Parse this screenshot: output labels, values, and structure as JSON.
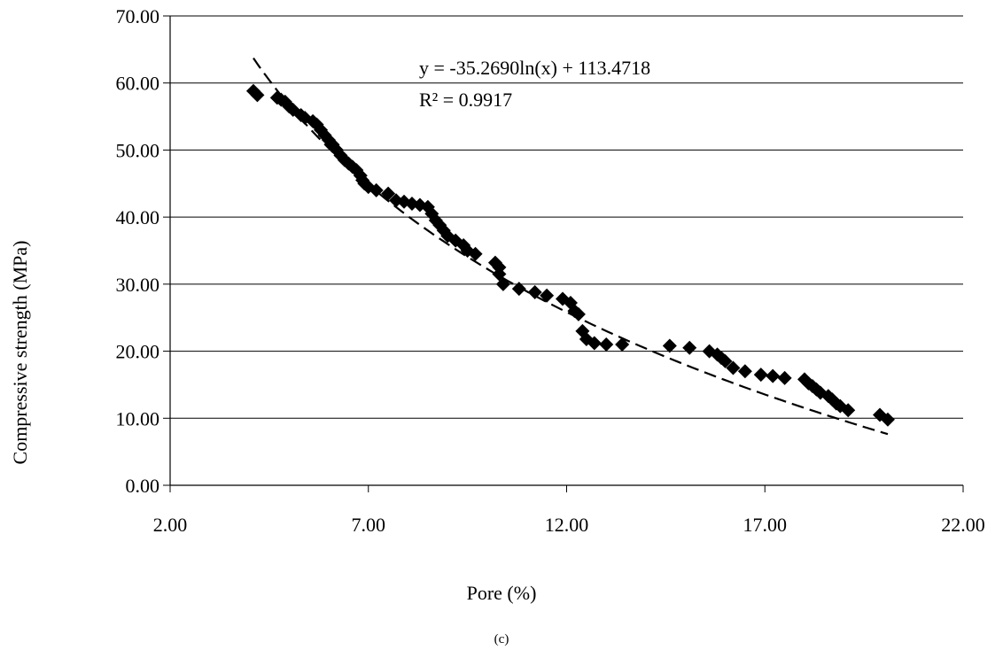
{
  "chart_data": {
    "type": "scatter",
    "xlabel": "Pore (%)",
    "ylabel": "Compressive strength (MPa)",
    "xlim": [
      2,
      22
    ],
    "ylim": [
      0,
      70
    ],
    "x_ticks": [
      "2.00",
      "7.00",
      "12.00",
      "17.00",
      "22.00"
    ],
    "y_ticks": [
      "0.00",
      "10.00",
      "20.00",
      "30.00",
      "40.00",
      "50.00",
      "60.00",
      "70.00"
    ],
    "grid": "horizontal",
    "marker": "diamond",
    "points": [
      [
        4.1,
        58.8
      ],
      [
        4.2,
        58.2
      ],
      [
        4.7,
        57.8
      ],
      [
        4.8,
        57.5
      ],
      [
        4.9,
        57.2
      ],
      [
        5.0,
        56.5
      ],
      [
        5.1,
        56.0
      ],
      [
        5.3,
        55.2
      ],
      [
        5.4,
        54.8
      ],
      [
        5.6,
        54.3
      ],
      [
        5.7,
        53.8
      ],
      [
        5.8,
        53.0
      ],
      [
        5.9,
        52.2
      ],
      [
        6.0,
        51.5
      ],
      [
        6.1,
        50.8
      ],
      [
        6.2,
        50.0
      ],
      [
        6.3,
        49.2
      ],
      [
        6.4,
        48.5
      ],
      [
        6.5,
        48.0
      ],
      [
        6.6,
        47.5
      ],
      [
        6.7,
        47.0
      ],
      [
        6.8,
        46.2
      ],
      [
        6.85,
        45.5
      ],
      [
        6.9,
        45.0
      ],
      [
        7.0,
        44.5
      ],
      [
        7.2,
        44.0
      ],
      [
        7.5,
        43.5
      ],
      [
        7.7,
        42.5
      ],
      [
        7.9,
        42.3
      ],
      [
        8.1,
        42.0
      ],
      [
        8.3,
        41.8
      ],
      [
        8.5,
        41.5
      ],
      [
        8.6,
        40.5
      ],
      [
        8.7,
        39.5
      ],
      [
        8.8,
        38.8
      ],
      [
        8.9,
        38.0
      ],
      [
        9.0,
        37.2
      ],
      [
        9.2,
        36.5
      ],
      [
        9.4,
        35.8
      ],
      [
        9.5,
        35.0
      ],
      [
        9.7,
        34.5
      ],
      [
        10.2,
        33.2
      ],
      [
        10.3,
        32.5
      ],
      [
        10.3,
        31.5
      ],
      [
        10.4,
        30.0
      ],
      [
        10.8,
        29.3
      ],
      [
        11.2,
        28.8
      ],
      [
        11.5,
        28.3
      ],
      [
        11.9,
        27.8
      ],
      [
        12.1,
        27.2
      ],
      [
        12.2,
        26.0
      ],
      [
        12.3,
        25.5
      ],
      [
        12.4,
        23.0
      ],
      [
        12.5,
        21.8
      ],
      [
        12.7,
        21.2
      ],
      [
        13.0,
        21.0
      ],
      [
        13.4,
        21.0
      ],
      [
        14.6,
        20.8
      ],
      [
        15.1,
        20.5
      ],
      [
        15.6,
        20.0
      ],
      [
        15.8,
        19.5
      ],
      [
        15.9,
        19.0
      ],
      [
        16.0,
        18.5
      ],
      [
        16.2,
        17.5
      ],
      [
        16.5,
        17.0
      ],
      [
        16.9,
        16.5
      ],
      [
        17.2,
        16.3
      ],
      [
        17.5,
        16.0
      ],
      [
        18.0,
        15.8
      ],
      [
        18.1,
        15.2
      ],
      [
        18.2,
        14.8
      ],
      [
        18.3,
        14.3
      ],
      [
        18.4,
        13.8
      ],
      [
        18.6,
        13.3
      ],
      [
        18.7,
        12.8
      ],
      [
        18.8,
        12.2
      ],
      [
        18.9,
        11.8
      ],
      [
        19.1,
        11.2
      ],
      [
        19.9,
        10.5
      ],
      [
        20.1,
        9.8
      ]
    ],
    "trendline": {
      "type": "logarithmic",
      "a": -35.269,
      "b": 113.4718,
      "x_range": [
        4.1,
        20.1
      ],
      "equation": "y = -35.2690ln(x) + 113.4718",
      "r2": "R² = 0.9917"
    },
    "caption": "(c)"
  }
}
